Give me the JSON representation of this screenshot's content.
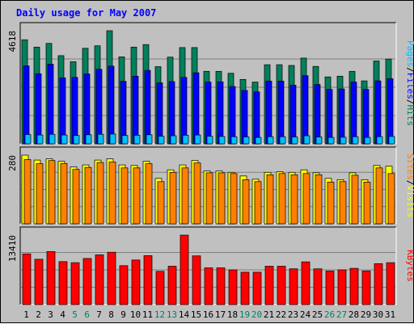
{
  "chart_data": {
    "type": "bar",
    "title": "Daily usage for May 2007",
    "days": [
      "1",
      "2",
      "3",
      "4",
      "5",
      "6",
      "7",
      "8",
      "9",
      "10",
      "11",
      "12",
      "13",
      "14",
      "15",
      "16",
      "17",
      "18",
      "19",
      "20",
      "21",
      "22",
      "23",
      "24",
      "25",
      "26",
      "27",
      "28",
      "29",
      "30",
      "31"
    ],
    "weekend_days": [
      "5",
      "6",
      "12",
      "13",
      "19",
      "20",
      "26",
      "27"
    ],
    "panels": [
      {
        "name": "hits_files_pages",
        "max_label": "4618",
        "ymax": 4618,
        "legend": [
          "Pages",
          "/",
          "Files",
          "/",
          "Hits"
        ],
        "series": [
          {
            "name": "Hits",
            "color": "#00805c",
            "values": [
              4250,
              3950,
              4100,
              3600,
              3350,
              3900,
              4000,
              4618,
              3550,
              3950,
              4050,
              3150,
              3540,
              3930,
              3930,
              2960,
              2960,
              2880,
              2630,
              2520,
              3230,
              3230,
              3200,
              3500,
              3160,
              2730,
              2760,
              2960,
              2570,
              3380,
              3460
            ]
          },
          {
            "name": "Files",
            "color": "#0000ff",
            "values": [
              3180,
              2860,
              3250,
              2690,
              2710,
              2850,
              3040,
              3170,
              2550,
              2760,
              3000,
              2490,
              2540,
              2710,
              2900,
              2520,
              2530,
              2340,
              2180,
              2120,
              2560,
              2560,
              2390,
              2780,
              2420,
              2220,
              2240,
              2520,
              2220,
              2570,
              2660
            ]
          },
          {
            "name": "Pages",
            "color": "#00bfff",
            "values": [
              380,
              360,
              390,
              360,
              340,
              370,
              390,
              400,
              340,
              350,
              370,
              310,
              330,
              350,
              360,
              310,
              300,
              290,
              280,
              260,
              290,
              290,
              280,
              330,
              280,
              260,
              270,
              290,
              260,
              290,
              300
            ]
          }
        ]
      },
      {
        "name": "visits_sites",
        "max_label": "280",
        "ymax": 280,
        "legend": [
          "Sites",
          "/",
          "Visits"
        ],
        "series": [
          {
            "name": "Visits",
            "color": "#ffff00",
            "values": [
              280,
              260,
              265,
              255,
              232,
              240,
              260,
              265,
              240,
              238,
              255,
              185,
              220,
              240,
              258,
              215,
              215,
              210,
              195,
              182,
              210,
              212,
              210,
              220,
              208,
              185,
              180,
              208,
              180,
              238,
              235
            ]
          },
          {
            "name": "Sites",
            "color": "#ff8000",
            "values": [
              262,
              245,
              258,
              246,
              222,
              230,
              250,
              252,
              228,
              228,
              245,
              172,
              210,
              228,
              248,
              208,
              208,
              205,
              180,
              172,
              200,
              205,
              200,
              205,
              200,
              170,
              172,
              198,
              170,
              228,
              205
            ]
          }
        ]
      },
      {
        "name": "kbytes",
        "max_label": "13410",
        "ymax": 13410,
        "legend": [
          "KBytes"
        ],
        "series": [
          {
            "name": "KBytes",
            "color": "#ff0000",
            "values": [
              9800,
              8750,
              10250,
              8300,
              8100,
              8900,
              9600,
              10100,
              7520,
              8600,
              9450,
              6420,
              7400,
              13410,
              9400,
              7100,
              7100,
              6700,
              6250,
              6250,
              7400,
              7400,
              6900,
              8250,
              6900,
              6500,
              6700,
              7000,
              6500,
              7900,
              8100
            ]
          }
        ]
      }
    ]
  }
}
